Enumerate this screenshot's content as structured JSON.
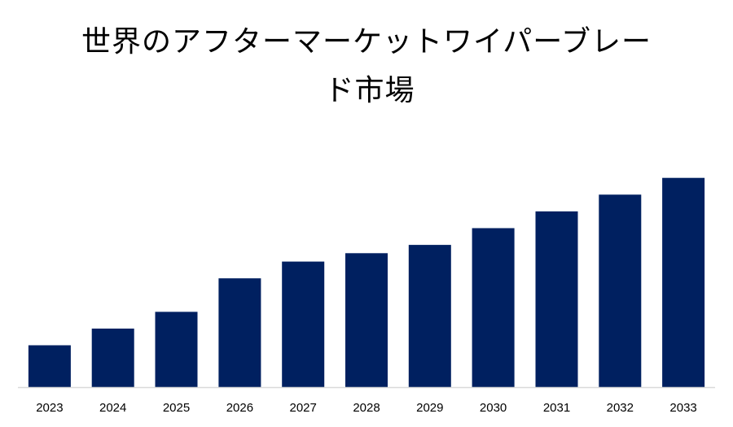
{
  "chart_data": {
    "type": "bar",
    "title_lines": [
      "世界のアフターマーケットワイパーブレー",
      "ド市場"
    ],
    "xlabel": "",
    "ylabel": "",
    "categories": [
      "2023",
      "2024",
      "2025",
      "2026",
      "2027",
      "2028",
      "2029",
      "2030",
      "2031",
      "2032",
      "2033"
    ],
    "values": [
      1.0,
      1.4,
      1.8,
      2.6,
      3.0,
      3.2,
      3.4,
      3.8,
      4.2,
      4.6,
      5.0
    ],
    "ylim": [
      0,
      5.5
    ],
    "y_axis_visible": false,
    "grid": false,
    "legend": "none",
    "bar_color": "#002060",
    "baseline_color": "#d9d9d9"
  }
}
